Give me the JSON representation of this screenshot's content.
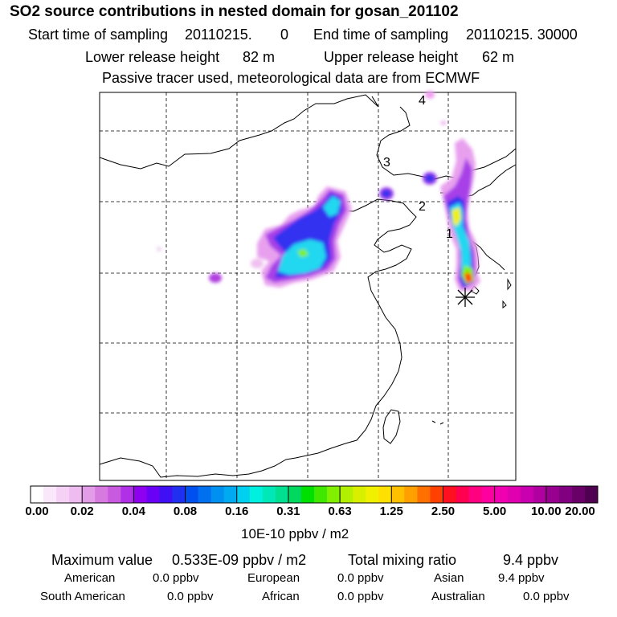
{
  "header": {
    "title": "SO2 source contributions in nested domain for gosan_201102",
    "start_label": "Start time of sampling",
    "start_value": "20110215.",
    "start_hour": "0",
    "end_label": "End time of sampling",
    "end_value": "20110215. 30000",
    "lower_label": "Lower release height",
    "lower_value": "82 m",
    "upper_label": "Upper release height",
    "upper_value": "62 m",
    "note": "Passive tracer used, meteorological data are from ECMWF"
  },
  "map": {
    "receptor_marker": "asterisk-icon",
    "point_labels": [
      "1",
      "2",
      "3",
      "4"
    ]
  },
  "colorbar": {
    "labels": [
      "0.00",
      "0.02",
      "0.04",
      "0.08",
      "0.16",
      "0.31",
      "0.63",
      "1.25",
      "2.50",
      "5.00",
      "10.00",
      "20.00"
    ],
    "colors": [
      "#ffffff",
      "#fae8fa",
      "#f5d2f5",
      "#eebcf0",
      "#e29ce8",
      "#d67ae0",
      "#c85ae0",
      "#b030e8",
      "#9000f0",
      "#6a00f5",
      "#4010f5",
      "#2030f0",
      "#0050f0",
      "#0070f0",
      "#0090f0",
      "#00aaf0",
      "#00d0f0",
      "#00f0e0",
      "#00e8b8",
      "#00e090",
      "#00d860",
      "#00e000",
      "#40e800",
      "#80f000",
      "#b0f000",
      "#d8f000",
      "#f0f000",
      "#ffe000",
      "#ffc000",
      "#ffa000",
      "#ff7000",
      "#ff4000",
      "#ff1020",
      "#ff0050",
      "#ff0080",
      "#ff00a0",
      "#f000b0",
      "#e000b0",
      "#c800b0",
      "#b000a0",
      "#980090",
      "#800080",
      "#680068",
      "#500050"
    ],
    "unit": "10E-10 ppbv / m2"
  },
  "footer": {
    "max_label": "Maximum value",
    "max_value": "0.533E-09 ppbv / m2",
    "total_label": "Total mixing ratio",
    "total_value": "9.4 ppbv",
    "regions": [
      {
        "name": "American",
        "value": "0.0 ppbv"
      },
      {
        "name": "European",
        "value": "0.0 ppbv"
      },
      {
        "name": "Asian",
        "value": "9.4 ppbv"
      },
      {
        "name": "South American",
        "value": "0.0 ppbv"
      },
      {
        "name": "African",
        "value": "0.0 ppbv"
      },
      {
        "name": "Australian",
        "value": "0.0 ppbv"
      }
    ]
  }
}
